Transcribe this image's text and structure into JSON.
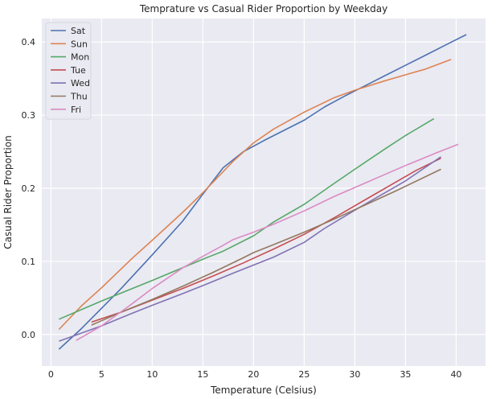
{
  "chart_data": {
    "type": "line",
    "title": "Temprature vs Casual Rider Proportion by Weekday",
    "xlabel": "Temperature (Celsius)",
    "ylabel": "Casual Rider Proportion",
    "xlim": [
      -0.9,
      42.9
    ],
    "ylim": [
      -0.043,
      0.432
    ],
    "xticks": [
      0,
      5,
      10,
      15,
      20,
      25,
      30,
      35,
      40
    ],
    "yticks": [
      0.0,
      0.1,
      0.2,
      0.3,
      0.4
    ],
    "xtick_labels": [
      "0",
      "5",
      "10",
      "15",
      "20",
      "25",
      "30",
      "35",
      "40"
    ],
    "ytick_labels": [
      "0.0",
      "0.1",
      "0.2",
      "0.3",
      "0.4"
    ],
    "grid": true,
    "legend_position": "upper-left",
    "background_color": "#eaeaf2",
    "series": [
      {
        "name": "Sat",
        "color": "#4c72b0",
        "x": [
          0.8,
          3,
          5,
          7,
          10,
          13,
          15,
          17,
          19,
          21,
          23,
          25,
          27,
          29,
          31,
          33,
          35,
          37,
          39,
          41
        ],
        "y": [
          -0.02,
          0.008,
          0.036,
          0.064,
          0.109,
          0.155,
          0.192,
          0.228,
          0.25,
          0.265,
          0.279,
          0.293,
          0.311,
          0.326,
          0.34,
          0.354,
          0.368,
          0.382,
          0.396,
          0.41
        ]
      },
      {
        "name": "Sun",
        "color": "#dd8452",
        "x": [
          0.8,
          3,
          5,
          8,
          10,
          13,
          15,
          18,
          20,
          22,
          25,
          28,
          30,
          33,
          35,
          37,
          39.5
        ],
        "y": [
          0.007,
          0.039,
          0.064,
          0.104,
          0.129,
          0.167,
          0.194,
          0.237,
          0.262,
          0.281,
          0.304,
          0.324,
          0.334,
          0.347,
          0.355,
          0.363,
          0.376
        ]
      },
      {
        "name": "Mon",
        "color": "#55a868",
        "x": [
          0.8,
          5,
          10,
          15,
          17,
          20,
          22,
          25,
          28,
          30,
          33,
          35,
          37.8
        ],
        "y": [
          0.021,
          0.046,
          0.074,
          0.103,
          0.114,
          0.135,
          0.154,
          0.178,
          0.207,
          0.226,
          0.254,
          0.272,
          0.295
        ]
      },
      {
        "name": "Tue",
        "color": "#c44e52",
        "x": [
          4,
          7,
          10,
          13,
          16,
          19,
          22,
          25,
          28,
          31,
          34,
          36,
          38.5
        ],
        "y": [
          0.017,
          0.031,
          0.047,
          0.063,
          0.08,
          0.098,
          0.117,
          0.137,
          0.16,
          0.184,
          0.208,
          0.224,
          0.241
        ]
      },
      {
        "name": "Wed",
        "color": "#8172b3",
        "x": [
          0.8,
          3,
          5,
          8,
          10,
          13,
          15,
          18,
          20,
          22,
          25,
          27,
          30,
          32,
          35,
          38.5
        ],
        "y": [
          -0.009,
          0.002,
          0.012,
          0.029,
          0.04,
          0.056,
          0.067,
          0.084,
          0.095,
          0.106,
          0.126,
          0.145,
          0.17,
          0.186,
          0.21,
          0.243
        ]
      },
      {
        "name": "Thu",
        "color": "#937860",
        "x": [
          4,
          7,
          10,
          13,
          16,
          19,
          20,
          22,
          25,
          28,
          31,
          34,
          38.5
        ],
        "y": [
          0.013,
          0.031,
          0.048,
          0.066,
          0.085,
          0.105,
          0.112,
          0.123,
          0.14,
          0.158,
          0.177,
          0.196,
          0.226
        ]
      },
      {
        "name": "Fri",
        "color": "#da8bc3",
        "x": [
          2.5,
          5,
          8,
          10,
          13,
          15,
          17,
          18,
          20,
          22,
          25,
          28,
          30,
          33,
          35,
          38,
          40.2
        ],
        "y": [
          -0.008,
          0.012,
          0.042,
          0.063,
          0.091,
          0.107,
          0.122,
          0.13,
          0.14,
          0.151,
          0.169,
          0.189,
          0.201,
          0.219,
          0.231,
          0.248,
          0.26
        ]
      }
    ]
  }
}
